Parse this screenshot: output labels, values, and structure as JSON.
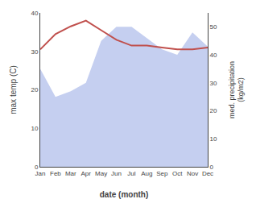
{
  "chart_data": {
    "type": "line",
    "xlabel": "date (month)",
    "ylabel": "max temp (C)",
    "y2label": "med. precipitation\n(kg/m2)",
    "categories": [
      "Jan",
      "Feb",
      "Mar",
      "Apr",
      "May",
      "Jun",
      "Jul",
      "Aug",
      "Sep",
      "Oct",
      "Nov",
      "Dec"
    ],
    "series": [
      {
        "type": "area",
        "axis": "y2",
        "color": "#c5cff0",
        "values": [
          35.0,
          25.0,
          27.0,
          30.0,
          45.0,
          50.0,
          50.0,
          46.0,
          42.0,
          40.0,
          48.0,
          43.0
        ]
      },
      {
        "type": "line",
        "color": "#c0504d",
        "values": [
          30.5,
          34.5,
          36.5,
          38.0,
          35.5,
          33.0,
          31.5,
          31.5,
          31.0,
          30.5,
          30.5,
          31.0
        ]
      }
    ],
    "ylim": [
      0,
      40
    ],
    "yticks": [
      0,
      10,
      20,
      30,
      40
    ],
    "y2lim": [
      0,
      55
    ],
    "y2ticks": [
      0,
      10,
      20,
      30,
      40,
      50
    ],
    "grid": false
  }
}
